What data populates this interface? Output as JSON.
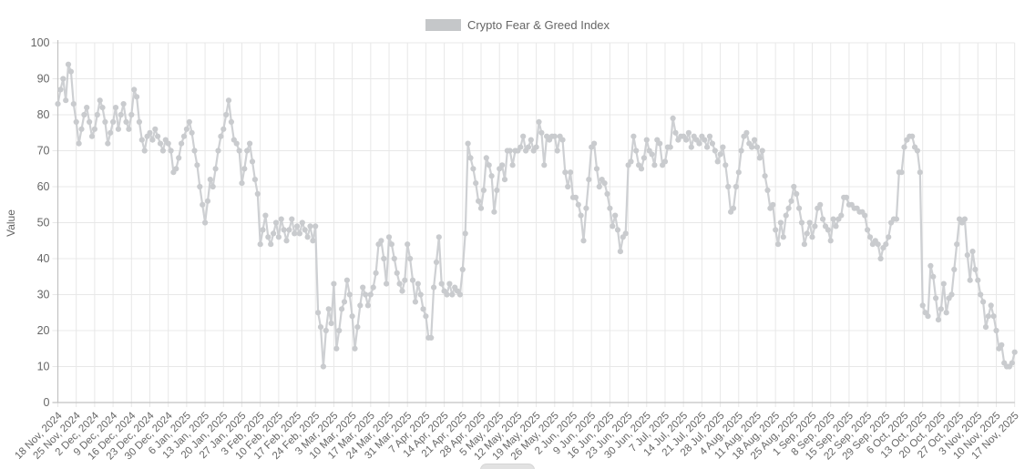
{
  "legend": {
    "label": "Crypto Fear & Greed Index"
  },
  "chart_data": {
    "type": "line",
    "title": "Crypto Fear & Greed Index",
    "xlabel": "",
    "ylabel": "Value",
    "ylim": [
      0,
      100
    ],
    "grid": true,
    "legend_position": "top-center",
    "frequency": "daily",
    "start_date": "18 Nov, 2024",
    "end_date": "17 Nov, 2025",
    "y_ticks": [
      0,
      10,
      20,
      30,
      40,
      50,
      60,
      70,
      80,
      90,
      100
    ],
    "x_tick_labels": [
      "18 Nov, 2024",
      "25 Nov, 2024",
      "2 Dec, 2024",
      "9 Dec, 2024",
      "16 Dec, 2024",
      "23 Dec, 2024",
      "30 Dec, 2024",
      "6 Jan, 2025",
      "13 Jan, 2025",
      "20 Jan, 2025",
      "27 Jan, 2025",
      "3 Feb, 2025",
      "10 Feb, 2025",
      "17 Feb, 2025",
      "24 Feb, 2025",
      "3 Mar, 2025",
      "10 Mar, 2025",
      "17 Mar, 2025",
      "24 Mar, 2025",
      "31 Mar, 2025",
      "7 Apr, 2025",
      "14 Apr, 2025",
      "21 Apr, 2025",
      "28 Apr, 2025",
      "5 May, 2025",
      "12 May, 2025",
      "19 May, 2025",
      "26 May, 2025",
      "2 Jun, 2025",
      "9 Jun, 2025",
      "16 Jun, 2025",
      "23 Jun, 2025",
      "30 Jun, 2025",
      "7 Jul, 2025",
      "14 Jul, 2025",
      "21 Jul, 2025",
      "28 Jul, 2025",
      "4 Aug, 2025",
      "11 Aug, 2025",
      "18 Aug, 2025",
      "25 Aug, 2025",
      "1 Sep, 2025",
      "8 Sep, 2025",
      "15 Sep, 2025",
      "22 Sep, 2025",
      "29 Sep, 2025",
      "6 Oct, 2025",
      "13 Oct, 2025",
      "20 Oct, 2025",
      "27 Oct, 2025",
      "3 Nov, 2025",
      "10 Nov, 2025",
      "17 Nov, 2025"
    ],
    "series": [
      {
        "name": "Crypto Fear & Greed Index",
        "color": "#c9cbce",
        "values": [
          83,
          87,
          90,
          84,
          94,
          92,
          83,
          78,
          72,
          76,
          80,
          82,
          78,
          74,
          76,
          80,
          84,
          82,
          78,
          72,
          75,
          78,
          82,
          76,
          80,
          83,
          78,
          76,
          80,
          87,
          85,
          78,
          73,
          70,
          74,
          75,
          73,
          76,
          74,
          72,
          70,
          73,
          72,
          70,
          64,
          65,
          68,
          72,
          74,
          76,
          78,
          75,
          70,
          66,
          60,
          55,
          50,
          56,
          62,
          60,
          65,
          70,
          74,
          76,
          80,
          84,
          78,
          73,
          72,
          70,
          61,
          65,
          70,
          72,
          67,
          62,
          58,
          44,
          48,
          52,
          46,
          44,
          47,
          50,
          46,
          51,
          48,
          45,
          48,
          51,
          47,
          49,
          47,
          50,
          48,
          46,
          49,
          45,
          49,
          25,
          21,
          10,
          20,
          26,
          22,
          33,
          15,
          20,
          26,
          28,
          34,
          30,
          24,
          15,
          21,
          27,
          32,
          30,
          27,
          30,
          32,
          36,
          44,
          45,
          40,
          33,
          46,
          44,
          40,
          36,
          33,
          31,
          34,
          44,
          40,
          34,
          28,
          33,
          30,
          26,
          24,
          18,
          18,
          32,
          39,
          46,
          33,
          31,
          30,
          33,
          30,
          32,
          31,
          30,
          37,
          47,
          72,
          68,
          65,
          61,
          56,
          54,
          59,
          68,
          66,
          63,
          53,
          59,
          65,
          66,
          62,
          70,
          70,
          66,
          70,
          70,
          71,
          74,
          70,
          71,
          73,
          70,
          71,
          78,
          75,
          66,
          74,
          73,
          74,
          74,
          70,
          74,
          73,
          64,
          60,
          64,
          57,
          57,
          55,
          52,
          45,
          54,
          62,
          71,
          72,
          65,
          60,
          62,
          61,
          58,
          54,
          49,
          52,
          48,
          42,
          46,
          47,
          66,
          67,
          74,
          70,
          66,
          65,
          68,
          73,
          70,
          69,
          66,
          73,
          72,
          66,
          67,
          71,
          71,
          79,
          75,
          73,
          74,
          74,
          73,
          75,
          71,
          74,
          73,
          72,
          74,
          73,
          71,
          74,
          72,
          70,
          67,
          69,
          71,
          66,
          60,
          53,
          54,
          60,
          64,
          70,
          74,
          75,
          72,
          71,
          73,
          71,
          68,
          70,
          63,
          59,
          54,
          55,
          48,
          44,
          50,
          46,
          52,
          54,
          56,
          60,
          58,
          54,
          50,
          44,
          47,
          50,
          46,
          49,
          54,
          55,
          51,
          49,
          48,
          45,
          51,
          49,
          51,
          52,
          57,
          57,
          55,
          55,
          54,
          54,
          53,
          53,
          52,
          48,
          46,
          44,
          45,
          44,
          40,
          43,
          44,
          46,
          50,
          51,
          51,
          64,
          64,
          71,
          73,
          74,
          74,
          71,
          70,
          64,
          27,
          25,
          24,
          38,
          35,
          29,
          23,
          26,
          33,
          25,
          29,
          30,
          37,
          44,
          51,
          50,
          51,
          41,
          34,
          42,
          37,
          34,
          30,
          28,
          21,
          24,
          27,
          24,
          20,
          15,
          16,
          11,
          10,
          10,
          11,
          14
        ]
      }
    ],
    "colors": {
      "series": "#c9cbce",
      "legend_swatch": "#c5c7c9",
      "grid": "#e8e8e8",
      "axis": "#c2c2c2",
      "tick_text": "#666666"
    }
  }
}
